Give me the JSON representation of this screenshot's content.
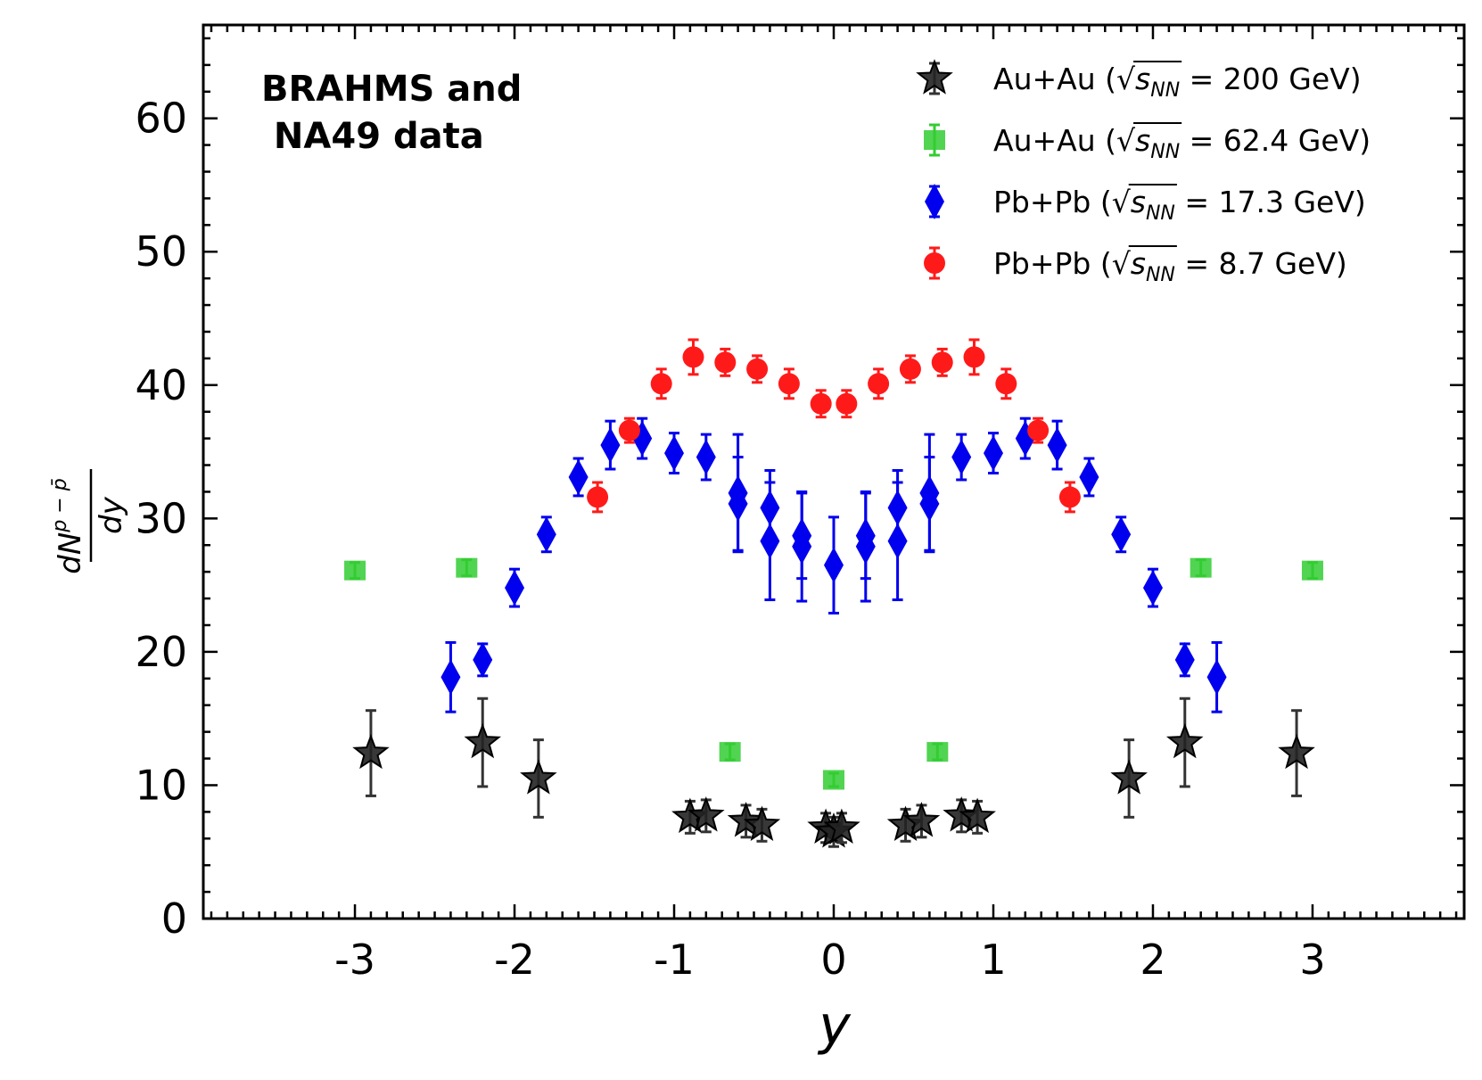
{
  "chart_data": {
    "type": "scatter",
    "annotation": [
      "BRAHMS and",
      " NA49 data"
    ],
    "xlabel": "y",
    "ylabel": {
      "numerator": "dN",
      "superscript": "p − p̄",
      "denominator": "dy"
    },
    "xlim": [
      -3.95,
      3.95
    ],
    "ylim": [
      0,
      67
    ],
    "xticks": [
      -3,
      -2,
      -1,
      0,
      1,
      2,
      3
    ],
    "xtick_labels": [
      "-3",
      "-2",
      "-1",
      "0",
      "1",
      "2",
      "3"
    ],
    "yticks": [
      0,
      10,
      20,
      30,
      40,
      50,
      60
    ],
    "ytick_labels": [
      "0",
      "10",
      "20",
      "30",
      "40",
      "50",
      "60"
    ],
    "grid": false,
    "legend_position": "top-right",
    "series": [
      {
        "name": "Au+Au (√sNN = 200 GeV)",
        "legend": {
          "prefix": "Au+Au (",
          "sub": "NN",
          "value": " = 200 GeV)"
        },
        "marker": "star",
        "color": "#222222",
        "points": [
          {
            "x": -2.9,
            "y": 12.4,
            "err": 3.2
          },
          {
            "x": -2.2,
            "y": 13.2,
            "err": 3.3
          },
          {
            "x": -1.85,
            "y": 10.5,
            "err": 2.9
          },
          {
            "x": -0.9,
            "y": 7.6,
            "err": 1.2
          },
          {
            "x": -0.8,
            "y": 7.7,
            "err": 1.2
          },
          {
            "x": -0.55,
            "y": 7.3,
            "err": 1.2
          },
          {
            "x": -0.45,
            "y": 7.0,
            "err": 1.2
          },
          {
            "x": -0.05,
            "y": 6.8,
            "err": 1.1
          },
          {
            "x": 0.0,
            "y": 6.5,
            "err": 1.1
          },
          {
            "x": 0.05,
            "y": 6.8,
            "err": 1.1
          },
          {
            "x": 0.45,
            "y": 7.0,
            "err": 1.2
          },
          {
            "x": 0.55,
            "y": 7.3,
            "err": 1.2
          },
          {
            "x": 0.8,
            "y": 7.7,
            "err": 1.2
          },
          {
            "x": 0.9,
            "y": 7.6,
            "err": 1.2
          },
          {
            "x": 1.85,
            "y": 10.5,
            "err": 2.9
          },
          {
            "x": 2.2,
            "y": 13.2,
            "err": 3.3
          },
          {
            "x": 2.9,
            "y": 12.4,
            "err": 3.2
          }
        ]
      },
      {
        "name": "Au+Au (√sNN = 62.4 GeV)",
        "legend": {
          "prefix": "Au+Au (",
          "sub": "NN",
          "value": " = 62.4 GeV)"
        },
        "marker": "square",
        "color": "#33cc33",
        "points": [
          {
            "x": -3.0,
            "y": 26.1,
            "err": 0.6
          },
          {
            "x": -2.3,
            "y": 26.3,
            "err": 0.6
          },
          {
            "x": -0.65,
            "y": 12.5,
            "err": 0.6
          },
          {
            "x": 0.0,
            "y": 10.4,
            "err": 0.5
          },
          {
            "x": 0.65,
            "y": 12.5,
            "err": 0.6
          },
          {
            "x": 2.3,
            "y": 26.3,
            "err": 0.6
          },
          {
            "x": 3.0,
            "y": 26.1,
            "err": 0.6
          }
        ]
      },
      {
        "name": "Pb+Pb (√sNN = 17.3 GeV)",
        "legend": {
          "prefix": "Pb+Pb (",
          "sub": "NN",
          "value": " = 17.3 GeV)"
        },
        "marker": "diamond",
        "color": "#0000ee",
        "points": [
          {
            "x": -2.4,
            "y": 18.1,
            "err": 2.6
          },
          {
            "x": -2.2,
            "y": 19.4,
            "err": 1.2
          },
          {
            "x": -2.0,
            "y": 24.8,
            "err": 1.4
          },
          {
            "x": -1.8,
            "y": 28.8,
            "err": 1.3
          },
          {
            "x": -1.6,
            "y": 33.1,
            "err": 1.4
          },
          {
            "x": -1.4,
            "y": 35.5,
            "err": 1.8
          },
          {
            "x": -1.2,
            "y": 36.0,
            "err": 1.5
          },
          {
            "x": -1.0,
            "y": 34.9,
            "err": 1.5
          },
          {
            "x": -0.8,
            "y": 34.6,
            "err": 1.7
          },
          {
            "x": -0.6,
            "y": 31.9,
            "err": 4.4
          },
          {
            "x": -0.6,
            "y": 31.1,
            "err": 3.5
          },
          {
            "x": -0.4,
            "y": 30.8,
            "err": 2.8
          },
          {
            "x": -0.4,
            "y": 28.3,
            "err": 4.4
          },
          {
            "x": -0.2,
            "y": 28.7,
            "err": 3.2
          },
          {
            "x": -0.2,
            "y": 27.9,
            "err": 4.1
          },
          {
            "x": 0.0,
            "y": 26.5,
            "err": 3.6
          },
          {
            "x": 0.2,
            "y": 27.9,
            "err": 4.1
          },
          {
            "x": 0.2,
            "y": 28.7,
            "err": 3.2
          },
          {
            "x": 0.4,
            "y": 28.3,
            "err": 4.4
          },
          {
            "x": 0.4,
            "y": 30.8,
            "err": 2.8
          },
          {
            "x": 0.6,
            "y": 31.1,
            "err": 3.5
          },
          {
            "x": 0.6,
            "y": 31.9,
            "err": 4.4
          },
          {
            "x": 0.8,
            "y": 34.6,
            "err": 1.7
          },
          {
            "x": 1.0,
            "y": 34.9,
            "err": 1.5
          },
          {
            "x": 1.2,
            "y": 36.0,
            "err": 1.5
          },
          {
            "x": 1.4,
            "y": 35.5,
            "err": 1.8
          },
          {
            "x": 1.6,
            "y": 33.1,
            "err": 1.4
          },
          {
            "x": 1.8,
            "y": 28.8,
            "err": 1.3
          },
          {
            "x": 2.0,
            "y": 24.8,
            "err": 1.4
          },
          {
            "x": 2.2,
            "y": 19.4,
            "err": 1.2
          },
          {
            "x": 2.4,
            "y": 18.1,
            "err": 2.6
          }
        ]
      },
      {
        "name": "Pb+Pb (√sNN = 8.7 GeV)",
        "legend": {
          "prefix": "Pb+Pb (",
          "sub": "NN",
          "value": " = 8.7 GeV)"
        },
        "marker": "circle",
        "color": "#ff1a1a",
        "points": [
          {
            "x": -1.48,
            "y": 31.6,
            "err": 1.1
          },
          {
            "x": -1.28,
            "y": 36.6,
            "err": 0.9
          },
          {
            "x": -1.08,
            "y": 40.1,
            "err": 1.1
          },
          {
            "x": -0.88,
            "y": 42.1,
            "err": 1.3
          },
          {
            "x": -0.68,
            "y": 41.7,
            "err": 1.0
          },
          {
            "x": -0.48,
            "y": 41.2,
            "err": 1.0
          },
          {
            "x": -0.28,
            "y": 40.1,
            "err": 1.1
          },
          {
            "x": -0.08,
            "y": 38.6,
            "err": 1.0
          },
          {
            "x": 0.08,
            "y": 38.6,
            "err": 1.0
          },
          {
            "x": 0.28,
            "y": 40.1,
            "err": 1.1
          },
          {
            "x": 0.48,
            "y": 41.2,
            "err": 1.0
          },
          {
            "x": 0.68,
            "y": 41.7,
            "err": 1.0
          },
          {
            "x": 0.88,
            "y": 42.1,
            "err": 1.3
          },
          {
            "x": 1.08,
            "y": 40.1,
            "err": 1.1
          },
          {
            "x": 1.28,
            "y": 36.6,
            "err": 0.9
          },
          {
            "x": 1.48,
            "y": 31.6,
            "err": 1.1
          }
        ]
      }
    ]
  }
}
